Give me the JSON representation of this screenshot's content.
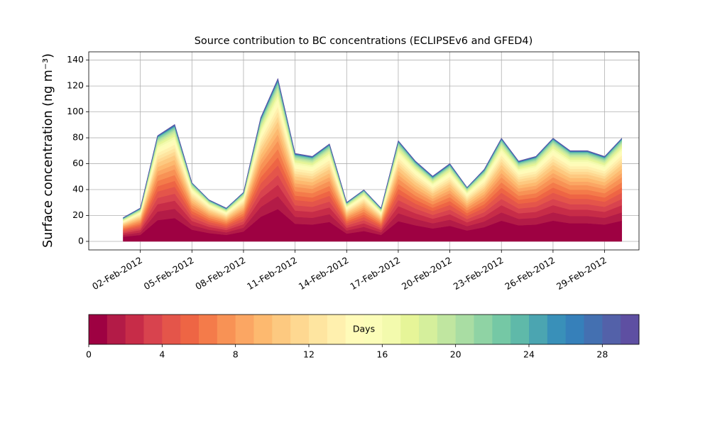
{
  "chart_data": {
    "type": "stackedarea",
    "title": "Source contribution to BC concentrations (ECLIPSEv6 and GFED4)",
    "y_label": "Surface concentration (ng m⁻³)",
    "grid": true,
    "xlim": [
      "2012-01-30",
      "2012-03-02"
    ],
    "xticks": [
      {
        "value": "2012-02-02",
        "label": "02-Feb-2012"
      },
      {
        "value": "2012-02-05",
        "label": "05-Feb-2012"
      },
      {
        "value": "2012-02-08",
        "label": "08-Feb-2012"
      },
      {
        "value": "2012-02-11",
        "label": "11-Feb-2012"
      },
      {
        "value": "2012-02-14",
        "label": "14-Feb-2012"
      },
      {
        "value": "2012-02-17",
        "label": "17-Feb-2012"
      },
      {
        "value": "2012-02-20",
        "label": "20-Feb-2012"
      },
      {
        "value": "2012-02-23",
        "label": "23-Feb-2012"
      },
      {
        "value": "2012-02-26",
        "label": "26-Feb-2012"
      },
      {
        "value": "2012-02-29",
        "label": "29-Feb-2012"
      }
    ],
    "ylim": [
      -6.6,
      146.4
    ],
    "yticks": [
      0,
      20,
      40,
      60,
      80,
      100,
      120,
      140
    ],
    "x": [
      "2012-02-01",
      "2012-02-02",
      "2012-02-03",
      "2012-02-04",
      "2012-02-05",
      "2012-02-06",
      "2012-02-07",
      "2012-02-08",
      "2012-02-09",
      "2012-02-10",
      "2012-02-11",
      "2012-02-12",
      "2012-02-13",
      "2012-02-14",
      "2012-02-15",
      "2012-02-16",
      "2012-02-17",
      "2012-02-18",
      "2012-02-19",
      "2012-02-20",
      "2012-02-21",
      "2012-02-22",
      "2012-02-23",
      "2012-02-24",
      "2012-02-25",
      "2012-02-26",
      "2012-02-27",
      "2012-02-28",
      "2012-02-29",
      "2012-03-01"
    ],
    "series": [
      {
        "color": "#9e0142",
        "values": [
          3.6,
          5,
          16.4,
          18,
          9,
          6.4,
          5,
          7.6,
          19,
          25,
          13.6,
          13,
          15,
          6,
          8,
          5,
          15.6,
          12.4,
          10,
          12,
          8.4,
          11,
          16,
          12.4,
          13,
          16,
          14,
          14,
          13,
          16
        ]
      },
      {
        "color": "#b31b47",
        "values": [
          1.4,
          2,
          6.6,
          7.2,
          3.6,
          2.6,
          2,
          3,
          7.6,
          10,
          5.4,
          5.2,
          6,
          2.4,
          3.2,
          2,
          6.2,
          5,
          4,
          4.8,
          3.4,
          4.4,
          6.4,
          5,
          5.2,
          6.4,
          5.6,
          5.6,
          5.2,
          6.4
        ]
      },
      {
        "color": "#c72c48",
        "values": [
          1.3,
          1.8,
          5.7,
          6.3,
          3.2,
          2.2,
          1.8,
          2.7,
          6.7,
          8.8,
          4.8,
          4.6,
          5.3,
          2.1,
          2.8,
          1.8,
          5.5,
          4.3,
          3.5,
          4.2,
          2.9,
          3.9,
          5.6,
          4.3,
          4.6,
          5.6,
          4.9,
          4.9,
          4.6,
          5.6
        ]
      },
      {
        "color": "#d8434e",
        "values": [
          1.1,
          1.5,
          4.9,
          5.4,
          2.7,
          1.9,
          1.5,
          2.3,
          5.7,
          7.5,
          4.1,
          3.9,
          4.5,
          1.8,
          2.4,
          1.5,
          4.7,
          3.7,
          3,
          3.6,
          2.5,
          3.3,
          4.8,
          3.7,
          3.9,
          4.8,
          4.2,
          4.2,
          3.9,
          4.8
        ]
      },
      {
        "color": "#e4554a",
        "values": [
          1.1,
          1.5,
          4.9,
          5.4,
          2.7,
          1.9,
          1.5,
          2.3,
          5.7,
          7.5,
          4.1,
          3.9,
          4.5,
          1.8,
          2.4,
          1.5,
          4.7,
          3.7,
          3,
          3.6,
          2.5,
          3.3,
          4.8,
          3.7,
          3.9,
          4.8,
          4.2,
          4.2,
          3.9,
          4.8
        ]
      },
      {
        "color": "#ee6544",
        "values": [
          0.9,
          1.3,
          4.1,
          4.5,
          2.3,
          1.6,
          1.3,
          1.9,
          4.8,
          6.3,
          3.4,
          3.3,
          3.8,
          1.5,
          2,
          1.3,
          3.9,
          3.1,
          2.5,
          3,
          2.1,
          2.8,
          4,
          3.1,
          3.3,
          4,
          3.5,
          3.5,
          3.3,
          4
        ]
      },
      {
        "color": "#f47b4a",
        "values": [
          0.9,
          1.3,
          4.1,
          4.5,
          2.3,
          1.6,
          1.3,
          1.9,
          4.8,
          6.3,
          3.4,
          3.3,
          3.8,
          1.5,
          2,
          1.3,
          3.9,
          3.1,
          2.5,
          3,
          2.1,
          2.8,
          4,
          3.1,
          3.3,
          4,
          3.5,
          3.5,
          3.3,
          4
        ]
      },
      {
        "color": "#f89255",
        "values": [
          0.9,
          1.3,
          4.1,
          4.5,
          2.3,
          1.6,
          1.3,
          1.9,
          4.8,
          6.3,
          3.4,
          3.3,
          3.8,
          1.5,
          2,
          1.3,
          3.9,
          3.1,
          2.5,
          3,
          2.1,
          2.8,
          4,
          3.1,
          3.3,
          4,
          3.5,
          3.5,
          3.3,
          4
        ]
      },
      {
        "color": "#fba663",
        "values": [
          0.7,
          1,
          3.3,
          3.6,
          1.8,
          1.3,
          1,
          1.5,
          3.8,
          5,
          2.7,
          2.6,
          3,
          1.2,
          1.6,
          1,
          3.1,
          2.5,
          2,
          2.4,
          1.7,
          2.2,
          3.2,
          2.5,
          2.6,
          3.2,
          2.8,
          2.8,
          2.6,
          3.2
        ]
      },
      {
        "color": "#fdb96f",
        "values": [
          0.7,
          1,
          3.3,
          3.6,
          1.8,
          1.3,
          1,
          1.5,
          3.8,
          5,
          2.7,
          2.6,
          3,
          1.2,
          1.6,
          1,
          3.1,
          2.5,
          2,
          2.4,
          1.7,
          2.2,
          3.2,
          2.5,
          2.6,
          3.2,
          2.8,
          2.8,
          2.6,
          3.2
        ]
      },
      {
        "color": "#fdc980",
        "values": [
          0.7,
          1,
          3.3,
          3.6,
          1.8,
          1.3,
          1,
          1.5,
          3.8,
          5,
          2.7,
          2.6,
          3,
          1.2,
          1.6,
          1,
          3.1,
          2.5,
          2,
          2.4,
          1.7,
          2.2,
          3.2,
          2.5,
          2.6,
          3.2,
          2.8,
          2.8,
          2.6,
          3.2
        ]
      },
      {
        "color": "#fed891",
        "values": [
          0.5,
          0.8,
          2.5,
          2.7,
          1.4,
          1,
          0.8,
          1.1,
          2.9,
          3.8,
          2,
          2,
          2.3,
          0.9,
          1.2,
          0.8,
          2.3,
          1.9,
          1.5,
          1.8,
          1.3,
          1.7,
          2.4,
          1.9,
          2,
          2.4,
          2.1,
          2.1,
          2,
          2.4
        ]
      },
      {
        "color": "#fee5a0",
        "values": [
          0.5,
          0.8,
          2.5,
          2.7,
          1.4,
          1,
          0.8,
          1.1,
          2.9,
          3.8,
          2,
          2,
          2.3,
          0.9,
          1.2,
          0.8,
          2.3,
          1.9,
          1.5,
          1.8,
          1.3,
          1.7,
          2.4,
          1.9,
          2,
          2.4,
          2.1,
          2.1,
          2,
          2.4
        ]
      },
      {
        "color": "#fff0ae",
        "values": [
          0.5,
          0.8,
          2.5,
          2.7,
          1.4,
          1,
          0.8,
          1.1,
          2.9,
          3.8,
          2,
          2,
          2.3,
          0.9,
          1.2,
          0.8,
          2.3,
          1.9,
          1.5,
          1.8,
          1.3,
          1.7,
          2.4,
          1.9,
          2,
          2.4,
          2.1,
          2.1,
          2,
          2.4
        ]
      },
      {
        "color": "#fffbb9",
        "values": [
          0.5,
          0.8,
          2.5,
          2.7,
          1.4,
          1,
          0.8,
          1.1,
          2.9,
          3.8,
          2,
          2,
          2.3,
          0.9,
          1.2,
          0.8,
          2.3,
          1.9,
          1.5,
          1.8,
          1.3,
          1.7,
          2.4,
          1.9,
          2,
          2.4,
          2.1,
          2.1,
          2,
          2.4
        ]
      },
      {
        "color": "#fbfdb8",
        "values": [
          0.4,
          0.5,
          1.6,
          1.8,
          0.9,
          0.6,
          0.5,
          0.8,
          1.9,
          2.5,
          1.4,
          1.3,
          1.5,
          0.6,
          0.8,
          0.5,
          1.6,
          1.2,
          1,
          1.2,
          0.8,
          1.1,
          1.6,
          1.2,
          1.3,
          1.6,
          1.4,
          1.4,
          1.3,
          1.6
        ]
      },
      {
        "color": "#f3faad",
        "values": [
          0.4,
          0.5,
          1.6,
          1.8,
          0.9,
          0.6,
          0.5,
          0.8,
          1.9,
          2.5,
          1.4,
          1.3,
          1.5,
          0.6,
          0.8,
          0.5,
          1.6,
          1.2,
          1,
          1.2,
          0.8,
          1.1,
          1.6,
          1.2,
          1.3,
          1.6,
          1.4,
          1.4,
          1.3,
          1.6
        ]
      },
      {
        "color": "#e6f598",
        "values": [
          0.4,
          0.5,
          1.6,
          1.8,
          0.9,
          0.6,
          0.5,
          0.8,
          1.9,
          2.5,
          1.4,
          1.3,
          1.5,
          0.6,
          0.8,
          0.5,
          1.6,
          1.2,
          1,
          1.2,
          0.8,
          1.1,
          1.6,
          1.2,
          1.3,
          1.6,
          1.4,
          1.4,
          1.3,
          1.6
        ]
      },
      {
        "color": "#d5ef9c",
        "values": [
          0.3,
          0.4,
          1.2,
          1.4,
          0.7,
          0.5,
          0.4,
          0.6,
          1.4,
          1.9,
          1,
          1,
          1.1,
          0.5,
          0.6,
          0.4,
          1.2,
          0.9,
          0.8,
          0.9,
          0.6,
          0.8,
          1.2,
          0.9,
          1,
          1.2,
          1.1,
          1.1,
          1,
          1.2
        ]
      },
      {
        "color": "#c0e6a0",
        "values": [
          0.3,
          0.4,
          1.2,
          1.4,
          0.7,
          0.5,
          0.4,
          0.6,
          1.4,
          1.9,
          1,
          1,
          1.1,
          0.5,
          0.6,
          0.4,
          1.2,
          0.9,
          0.8,
          0.9,
          0.6,
          0.8,
          1.2,
          0.9,
          1,
          1.2,
          1.1,
          1.1,
          1,
          1.2
        ]
      },
      {
        "color": "#a9dda3",
        "values": [
          0.2,
          0.3,
          0.8,
          0.9,
          0.5,
          0.3,
          0.3,
          0.4,
          1,
          1.3,
          0.7,
          0.7,
          0.8,
          0.3,
          0.4,
          0.3,
          0.8,
          0.6,
          0.5,
          0.6,
          0.4,
          0.6,
          0.8,
          0.6,
          0.7,
          0.8,
          0.7,
          0.7,
          0.7,
          0.8
        ]
      },
      {
        "color": "#8fd3a4",
        "values": [
          0.2,
          0.3,
          0.8,
          0.9,
          0.5,
          0.3,
          0.3,
          0.4,
          1,
          1.3,
          0.7,
          0.7,
          0.8,
          0.3,
          0.4,
          0.3,
          0.8,
          0.6,
          0.5,
          0.6,
          0.4,
          0.6,
          0.8,
          0.6,
          0.7,
          0.8,
          0.7,
          0.7,
          0.7,
          0.8
        ]
      },
      {
        "color": "#75c8a5",
        "values": [
          0.2,
          0.3,
          0.8,
          0.9,
          0.5,
          0.3,
          0.3,
          0.4,
          1,
          1.3,
          0.7,
          0.7,
          0.8,
          0.3,
          0.4,
          0.3,
          0.8,
          0.6,
          0.5,
          0.6,
          0.4,
          0.6,
          0.8,
          0.6,
          0.7,
          0.8,
          0.7,
          0.7,
          0.7,
          0.8
        ]
      },
      {
        "color": "#5fb9a9",
        "values": [
          0.1,
          0.1,
          0.2,
          0.3,
          0.1,
          0.1,
          0.1,
          0.1,
          0.3,
          0.4,
          0.2,
          0.2,
          0.2,
          0.1,
          0.1,
          0.1,
          0.2,
          0.2,
          0.2,
          0.2,
          0.1,
          0.2,
          0.2,
          0.2,
          0.2,
          0.2,
          0.2,
          0.2,
          0.2,
          0.2
        ]
      },
      {
        "color": "#4ba5b1",
        "values": [
          0.1,
          0.1,
          0.2,
          0.3,
          0.1,
          0.1,
          0.1,
          0.1,
          0.3,
          0.4,
          0.2,
          0.2,
          0.2,
          0.1,
          0.1,
          0.1,
          0.2,
          0.2,
          0.2,
          0.2,
          0.1,
          0.2,
          0.2,
          0.2,
          0.2,
          0.2,
          0.2,
          0.2,
          0.2,
          0.2
        ]
      },
      {
        "color": "#3990b9",
        "values": [
          0.1,
          0.1,
          0.2,
          0.3,
          0.1,
          0.1,
          0.1,
          0.1,
          0.3,
          0.4,
          0.2,
          0.2,
          0.2,
          0.1,
          0.1,
          0.1,
          0.2,
          0.2,
          0.2,
          0.2,
          0.1,
          0.2,
          0.2,
          0.2,
          0.2,
          0.2,
          0.2,
          0.2,
          0.2,
          0.2
        ]
      },
      {
        "color": "#3680ba",
        "values": [
          0.1,
          0.1,
          0.2,
          0.3,
          0.1,
          0.1,
          0.1,
          0.1,
          0.3,
          0.4,
          0.2,
          0.2,
          0.2,
          0.1,
          0.1,
          0.1,
          0.2,
          0.2,
          0.2,
          0.2,
          0.1,
          0.2,
          0.2,
          0.2,
          0.2,
          0.2,
          0.2,
          0.2,
          0.2,
          0.2
        ]
      },
      {
        "color": "#4470b1",
        "values": [
          0.1,
          0.1,
          0.2,
          0.3,
          0.1,
          0.1,
          0.1,
          0.1,
          0.3,
          0.4,
          0.2,
          0.2,
          0.2,
          0.1,
          0.1,
          0.1,
          0.2,
          0.2,
          0.2,
          0.2,
          0.1,
          0.2,
          0.2,
          0.2,
          0.2,
          0.2,
          0.2,
          0.2,
          0.2,
          0.2
        ]
      },
      {
        "color": "#5361a9",
        "values": [
          0.1,
          0.1,
          0.2,
          0.3,
          0.1,
          0.1,
          0.1,
          0.1,
          0.3,
          0.4,
          0.2,
          0.2,
          0.2,
          0.1,
          0.1,
          0.1,
          0.2,
          0.2,
          0.2,
          0.2,
          0.1,
          0.2,
          0.2,
          0.2,
          0.2,
          0.2,
          0.2,
          0.2,
          0.2,
          0.2
        ]
      },
      {
        "color": "#5e4fa2",
        "values": [
          0.1,
          0.1,
          0.2,
          0.3,
          0.1,
          0.1,
          0.1,
          0.1,
          0.3,
          0.4,
          0.2,
          0.2,
          0.2,
          0.1,
          0.1,
          0.1,
          0.2,
          0.2,
          0.2,
          0.2,
          0.1,
          0.2,
          0.2,
          0.2,
          0.2,
          0.2,
          0.2,
          0.2,
          0.2,
          0.2
        ]
      }
    ],
    "colorbar": {
      "label": "Days",
      "lim": [
        0,
        30
      ],
      "ticks": [
        0,
        4,
        8,
        12,
        16,
        20,
        24,
        28
      ]
    }
  }
}
